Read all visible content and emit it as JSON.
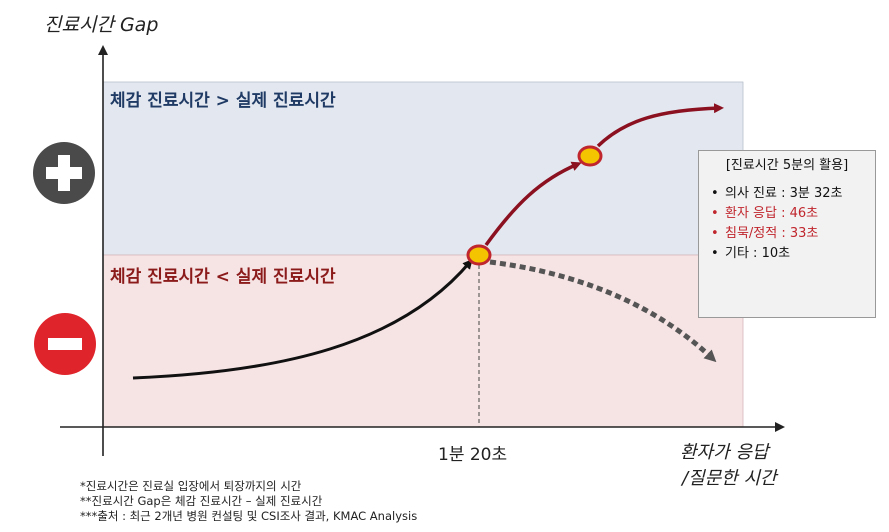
{
  "axis": {
    "y_label": "진료시간 Gap",
    "x_label_line1": "환자가 응답",
    "x_label_line2": "/질문한 시간",
    "x_tick": "1분 20초"
  },
  "zones": {
    "top_label": "체감 진료시간 > 실제 진료시간",
    "bottom_label": "체감 진료시간 < 실제 진료시간",
    "top_color": "#e3e8f0",
    "bottom_color": "#f6e3e4"
  },
  "icons": {
    "plus_icon": "plus-circle-icon",
    "minus_icon": "minus-circle-icon",
    "plus_color": "#4a4a4a",
    "minus_color": "#e0242b"
  },
  "note_box": {
    "title": "[진료시간 5분의 활용]",
    "items": [
      {
        "text": "의사 진료 : 3분 32초",
        "color": "#111111"
      },
      {
        "text": "환자 응답 : 46초",
        "color": "#c0262d"
      },
      {
        "text": "침묵/정적 : 33초",
        "color": "#c0262d"
      },
      {
        "text": "기타 : 10초",
        "color": "#111111"
      }
    ]
  },
  "footnotes": [
    "*진료시간은 진료실 입장에서 퇴장까지의 시간",
    "**진료시간 Gap은 체감 진료시간 – 실제 진료시간",
    "***출처 : 최근 2개년 병원 컨설팅 및 CSI조사 결과, KMAC Analysis"
  ],
  "colors": {
    "curve_dark": "#8b1020",
    "marker_fill": "#f5c400",
    "marker_stroke": "#c0262d",
    "dashed_curve": "#555555"
  }
}
